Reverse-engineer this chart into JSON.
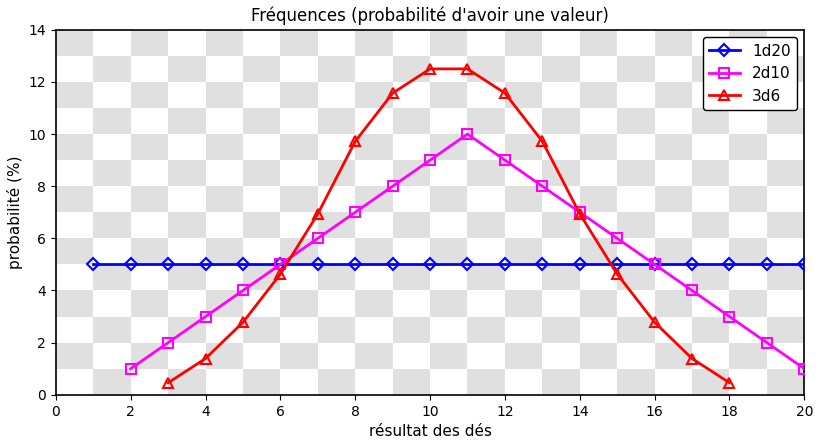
{
  "title": "Fréquences (probabilité d'avoir une valeur)",
  "xlabel": "résultat des dés",
  "ylabel": "probabilité (%)",
  "xlim": [
    0,
    20
  ],
  "ylim": [
    0,
    14
  ],
  "xticks": [
    0,
    2,
    4,
    6,
    8,
    10,
    12,
    14,
    16,
    18,
    20
  ],
  "yticks": [
    0,
    2,
    4,
    6,
    8,
    10,
    12,
    14
  ],
  "checker_color1": "#ffffff",
  "checker_color2": "#e0e0e0",
  "checker_cols": 20,
  "checker_rows": 14,
  "fig_bg": "#ffffff",
  "series": [
    {
      "label": "1d20",
      "color": "blue",
      "marker": "D",
      "markersize": 6,
      "linewidth": 2,
      "x": [
        1,
        2,
        3,
        4,
        5,
        6,
        7,
        8,
        9,
        10,
        11,
        12,
        13,
        14,
        15,
        16,
        17,
        18,
        19,
        20
      ],
      "y": [
        5,
        5,
        5,
        5,
        5,
        5,
        5,
        5,
        5,
        5,
        5,
        5,
        5,
        5,
        5,
        5,
        5,
        5,
        5,
        5
      ]
    },
    {
      "label": "2d10",
      "color": "#ff00ff",
      "marker": "s",
      "markersize": 7,
      "linewidth": 2,
      "x": [
        2,
        3,
        4,
        5,
        6,
        7,
        8,
        9,
        10,
        11,
        12,
        13,
        14,
        15,
        16,
        17,
        18,
        19,
        20
      ],
      "y": [
        1,
        2,
        3,
        4,
        5,
        6,
        7,
        8,
        9,
        10,
        9,
        8,
        7,
        6,
        5,
        4,
        3,
        2,
        1
      ]
    },
    {
      "label": "3d6",
      "color": "red",
      "marker": "^",
      "markersize": 7,
      "linewidth": 2,
      "x": [
        3,
        4,
        5,
        6,
        7,
        8,
        9,
        10,
        11,
        12,
        13,
        14,
        15,
        16,
        17,
        18
      ],
      "y": [
        0.46,
        1.39,
        2.78,
        4.63,
        6.94,
        9.72,
        11.57,
        12.5,
        12.5,
        11.57,
        9.72,
        6.94,
        4.63,
        2.78,
        1.39,
        0.46
      ]
    }
  ],
  "legend_loc": "upper right",
  "title_fontsize": 12,
  "axis_fontsize": 11,
  "tick_fontsize": 10,
  "legend_fontsize": 11
}
